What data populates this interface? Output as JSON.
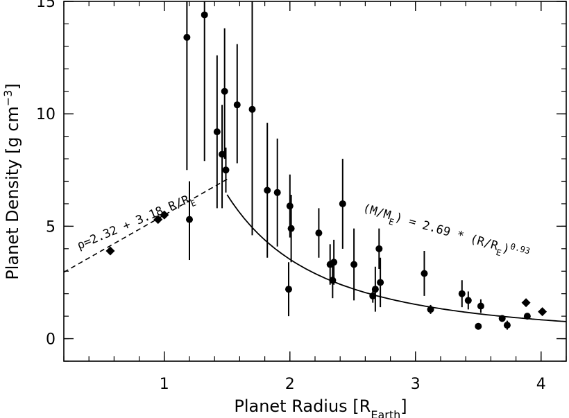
{
  "chart_data": {
    "type": "scatter",
    "title": "",
    "xlabel": "Planet Radius [R",
    "xlabel_sub": "Earth",
    "xlabel_end": "]",
    "ylabel": "Planet Density [g cm",
    "ylabel_sup": "−3",
    "ylabel_end": "]",
    "xlim": [
      0.2,
      4.2
    ],
    "ylim": [
      -1,
      15
    ],
    "xticks": [
      1,
      2,
      3,
      4
    ],
    "yticks": [
      0,
      5,
      10,
      15
    ],
    "grid": false,
    "series": [
      {
        "marker": "circle",
        "points": [
          {
            "x": 1.18,
            "y": 13.4,
            "lo": 7.5,
            "hi": 15.0
          },
          {
            "x": 1.2,
            "y": 5.3,
            "lo": 3.5,
            "hi": 7.0
          },
          {
            "x": 1.32,
            "y": 14.4,
            "lo": 7.9,
            "hi": 15.0
          },
          {
            "x": 1.42,
            "y": 9.2,
            "lo": 5.8,
            "hi": 12.6
          },
          {
            "x": 1.46,
            "y": 8.2,
            "lo": 5.8,
            "hi": 10.4
          },
          {
            "x": 1.48,
            "y": 11.0,
            "lo": 8.0,
            "hi": 13.8
          },
          {
            "x": 1.49,
            "y": 7.5,
            "lo": 6.5,
            "hi": 8.5
          },
          {
            "x": 1.58,
            "y": 10.4,
            "lo": 7.8,
            "hi": 13.1
          },
          {
            "x": 1.7,
            "y": 10.2,
            "lo": 4.6,
            "hi": 15.0
          },
          {
            "x": 1.82,
            "y": 6.6,
            "lo": 3.6,
            "hi": 9.6
          },
          {
            "x": 1.9,
            "y": 6.5,
            "lo": 4.1,
            "hi": 8.9
          },
          {
            "x": 1.99,
            "y": 2.2,
            "lo": 1.0,
            "hi": 3.4
          },
          {
            "x": 2.0,
            "y": 5.9,
            "lo": 4.5,
            "hi": 7.3
          },
          {
            "x": 2.01,
            "y": 4.9,
            "lo": 3.4,
            "hi": 6.4
          },
          {
            "x": 2.23,
            "y": 4.7,
            "lo": 3.6,
            "hi": 5.8
          },
          {
            "x": 2.32,
            "y": 3.3,
            "lo": 2.4,
            "hi": 4.2
          },
          {
            "x": 2.34,
            "y": 2.6,
            "lo": 1.8,
            "hi": 3.4
          },
          {
            "x": 2.35,
            "y": 3.4,
            "lo": 2.4,
            "hi": 4.4
          },
          {
            "x": 2.42,
            "y": 6.0,
            "lo": 4.0,
            "hi": 8.0
          },
          {
            "x": 2.51,
            "y": 3.3,
            "lo": 1.7,
            "hi": 4.9
          },
          {
            "x": 2.66,
            "y": 1.9,
            "lo": 1.6,
            "hi": 2.2
          },
          {
            "x": 2.68,
            "y": 2.2,
            "lo": 1.2,
            "hi": 3.2
          },
          {
            "x": 2.71,
            "y": 4.0,
            "lo": 3.1,
            "hi": 4.9
          },
          {
            "x": 2.72,
            "y": 2.5,
            "lo": 1.4,
            "hi": 3.6
          },
          {
            "x": 3.07,
            "y": 2.9,
            "lo": 1.9,
            "hi": 3.9
          },
          {
            "x": 3.12,
            "y": 1.3,
            "lo": 1.1,
            "hi": 1.5
          },
          {
            "x": 3.37,
            "y": 2.0,
            "lo": 1.4,
            "hi": 2.6
          },
          {
            "x": 3.42,
            "y": 1.7,
            "lo": 1.3,
            "hi": 2.1
          },
          {
            "x": 3.5,
            "y": 0.55,
            "lo": 0.55,
            "hi": 0.55
          },
          {
            "x": 3.52,
            "y": 1.45,
            "lo": 1.15,
            "hi": 1.75
          },
          {
            "x": 3.69,
            "y": 0.9,
            "lo": 0.75,
            "hi": 1.05
          },
          {
            "x": 3.73,
            "y": 0.6,
            "lo": 0.4,
            "hi": 0.8
          },
          {
            "x": 3.89,
            "y": 1.0,
            "lo": 1.0,
            "hi": 1.0
          }
        ]
      },
      {
        "marker": "diamond",
        "points": [
          {
            "x": 0.57,
            "y": 3.9
          },
          {
            "x": 0.95,
            "y": 5.3
          },
          {
            "x": 1.0,
            "y": 5.5
          },
          {
            "x": 3.88,
            "y": 1.6
          },
          {
            "x": 4.01,
            "y": 1.2
          }
        ]
      }
    ],
    "fits": [
      {
        "style": "dashed",
        "label": "ρ=2.32 + 3.18 R/R",
        "label_sub": "E",
        "intercept": 2.32,
        "slope": 3.18,
        "x_range": [
          0.2,
          1.5
        ]
      },
      {
        "style": "solid",
        "label": "(M/M",
        "label_sub": "E",
        "label_mid": ") = 2.69 * (R/R",
        "label_sub2": "E",
        "label_end": ")",
        "label_sup": "0.93",
        "coefficient": 2.69,
        "exponent": 0.93,
        "x_range": [
          1.5,
          4.2
        ]
      }
    ]
  }
}
